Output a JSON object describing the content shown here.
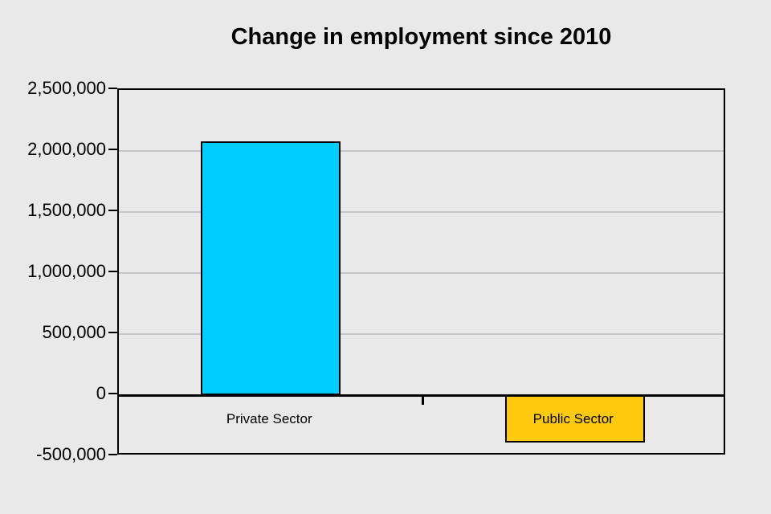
{
  "page": {
    "background_color": "#E9E9E9"
  },
  "chart_data": {
    "type": "bar",
    "title": "Change in employment since 2010",
    "xlabel": "",
    "ylabel": "",
    "categories": [
      "Private Sector",
      "Public Sector"
    ],
    "values": [
      2080000,
      -390000
    ],
    "bar_colors": [
      "#00CCFF",
      "#FFC90E"
    ],
    "bar_border_color": "#000000",
    "ylim": [
      -500000,
      2500000
    ],
    "ytick_interval": 500000,
    "yticks": [
      2500000,
      2000000,
      1500000,
      1000000,
      500000,
      0,
      -500000
    ],
    "ytick_labels": [
      "2,500,000",
      "2,000,000",
      "1,500,000",
      "1,000,000",
      "500,000",
      "0",
      "-500,000"
    ],
    "grid": true,
    "gridline_color": "#C6C6C6",
    "axis_color": "#000000",
    "legend_position": "none"
  }
}
